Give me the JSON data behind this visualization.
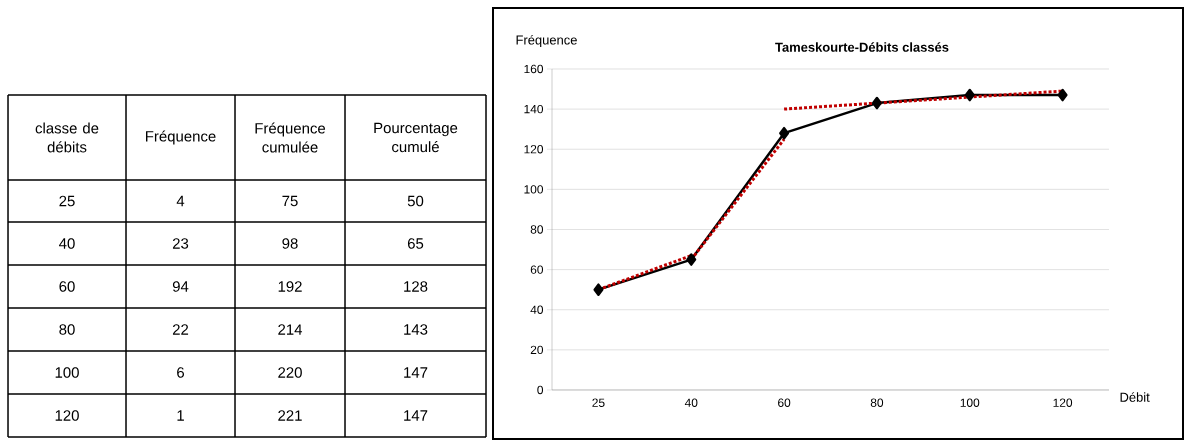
{
  "chart_data": [
    {
      "type": "other",
      "xlabel": "classe de débits",
      "categories": [
        "25",
        "40",
        "60",
        "80",
        "100",
        "120"
      ],
      "series": [
        {
          "name": "Fréquence",
          "values": [
            4,
            23,
            94,
            22,
            6,
            1
          ]
        },
        {
          "name": "Fréquence cumulée",
          "values": [
            75,
            98,
            192,
            214,
            220,
            221
          ]
        },
        {
          "name": "Pourcentage cumulé",
          "values": [
            50,
            65,
            128,
            143,
            147,
            147
          ]
        }
      ],
      "data_labels": true
    },
    {
      "type": "line",
      "title": "Tameskourte-Débits classés",
      "xlabel": "Débit",
      "ylabel": "Fréquence",
      "categories": [
        "25",
        "40",
        "60",
        "80",
        "100",
        "120"
      ],
      "ylim": [
        0,
        160
      ],
      "yticks": [
        0,
        20,
        40,
        60,
        80,
        100,
        120,
        140,
        160
      ],
      "grid": "y",
      "marker": "diamond",
      "line_style": "solid",
      "series": [
        {
          "color": "#000000",
          "values": [
            50,
            65,
            128,
            143,
            147,
            147
          ]
        },
        {
          "type": "line",
          "color": "#c00000",
          "line_style": "dotted",
          "marker": "none",
          "values": [
            50,
            67,
            null,
            null,
            null,
            null
          ]
        },
        {
          "type": "line",
          "color": "#c00000",
          "line_style": "dotted",
          "marker": "none",
          "values": [
            null,
            65,
            125,
            null,
            null,
            null
          ]
        },
        {
          "type": "line",
          "color": "#c00000",
          "line_style": "dotted",
          "marker": "none",
          "values": [
            null,
            null,
            140,
            143,
            146,
            149
          ]
        }
      ]
    }
  ]
}
